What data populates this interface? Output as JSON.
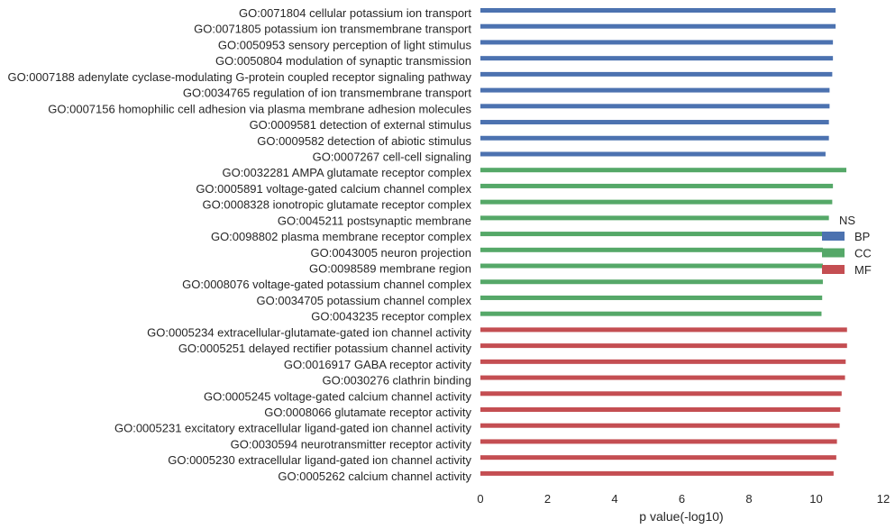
{
  "chart_data": {
    "type": "bar",
    "orientation": "horizontal",
    "title": "",
    "xlabel": "p value(-log10)",
    "ylabel": "",
    "xlim": [
      0,
      12
    ],
    "xticks": [
      "0",
      "2",
      "4",
      "6",
      "8",
      "10",
      "12"
    ],
    "grid": false,
    "legend": {
      "title": "NS",
      "placement": "right",
      "entries": [
        {
          "name": "BP",
          "color": "#4c72b0"
        },
        {
          "name": "CC",
          "color": "#55a868"
        },
        {
          "name": "MF",
          "color": "#c44e52"
        }
      ]
    },
    "categories": [
      "GO:0071804 cellular potassium ion transport",
      "GO:0071805 potassium ion transmembrane transport",
      "GO:0050953 sensory perception of light stimulus",
      "GO:0050804 modulation of synaptic transmission",
      "GO:0007188 adenylate cyclase-modulating G-protein coupled receptor signaling pathway",
      "GO:0034765 regulation of ion transmembrane transport",
      "GO:0007156 homophilic cell adhesion via plasma membrane adhesion molecules",
      "GO:0009581 detection of external stimulus",
      "GO:0009582 detection of abiotic stimulus",
      "GO:0007267 cell-cell signaling",
      "GO:0032281 AMPA glutamate receptor complex",
      "GO:0005891 voltage-gated calcium channel complex",
      "GO:0008328 ionotropic glutamate receptor complex",
      "GO:0045211 postsynaptic membrane",
      "GO:0098802 plasma membrane receptor complex",
      "GO:0043005 neuron projection",
      "GO:0098589 membrane region",
      "GO:0008076 voltage-gated potassium channel complex",
      "GO:0034705 potassium channel complex",
      "GO:0043235 receptor complex",
      "GO:0005234 extracellular-glutamate-gated ion channel activity",
      "GO:0005251 delayed rectifier potassium channel activity",
      "GO:0016917 GABA receptor activity",
      "GO:0030276 clathrin binding",
      "GO:0005245 voltage-gated calcium channel activity",
      "GO:0008066 glutamate receptor activity",
      "GO:0005231 excitatory extracellular ligand-gated ion channel activity",
      "GO:0030594 neurotransmitter receptor activity",
      "GO:0005230 extracellular ligand-gated ion channel activity",
      "GO:0005262 calcium channel activity"
    ],
    "groups": [
      "BP",
      "BP",
      "BP",
      "BP",
      "BP",
      "BP",
      "BP",
      "BP",
      "BP",
      "BP",
      "CC",
      "CC",
      "CC",
      "CC",
      "CC",
      "CC",
      "CC",
      "CC",
      "CC",
      "CC",
      "MF",
      "MF",
      "MF",
      "MF",
      "MF",
      "MF",
      "MF",
      "MF",
      "MF",
      "MF"
    ],
    "values": [
      10.58,
      10.58,
      10.5,
      10.5,
      10.48,
      10.4,
      10.4,
      10.38,
      10.38,
      10.28,
      10.9,
      10.5,
      10.48,
      10.38,
      10.3,
      10.2,
      10.2,
      10.2,
      10.18,
      10.16,
      10.92,
      10.92,
      10.88,
      10.86,
      10.76,
      10.72,
      10.7,
      10.62,
      10.6,
      10.52
    ]
  }
}
